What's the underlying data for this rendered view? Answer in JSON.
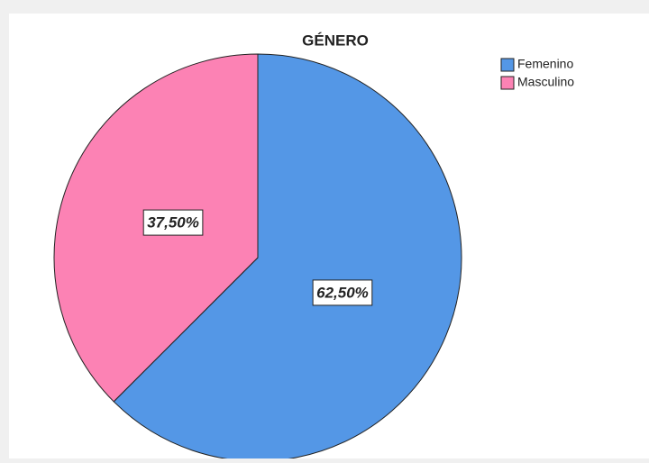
{
  "chart_data": {
    "type": "pie",
    "title": "GÉNERO",
    "categories": [
      "Femenino",
      "Masculino"
    ],
    "values": [
      62.5,
      37.5
    ],
    "value_labels": [
      "62,50%",
      "37,50%"
    ],
    "colors": [
      "#5497e6",
      "#fc82b4"
    ],
    "legend": "top-right"
  }
}
